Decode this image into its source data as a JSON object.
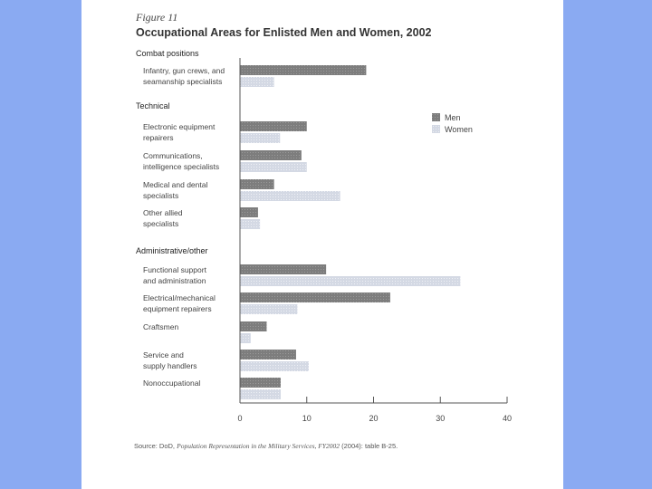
{
  "figure_label": "Figure 11",
  "source": {
    "prefix": "Source: DoD, ",
    "title": "Population Representation in the Military Services, FY2002",
    "suffix": " (2004): table B-25."
  },
  "colors": {
    "men": "#7d7d7d",
    "women": "#d4d9e4",
    "page": "#ffffff",
    "frame": "#8aaaf2"
  },
  "chart_data": {
    "type": "bar",
    "orientation": "horizontal",
    "title": "Occupational Areas for Enlisted Men and Women, 2002",
    "legend": {
      "position": "top-right",
      "entries": [
        "Men",
        "Women"
      ]
    },
    "xlim": [
      0,
      40
    ],
    "xticks": [
      0,
      10,
      20,
      30,
      40
    ],
    "grid": false,
    "groups": [
      {
        "name": "Combat positions",
        "categories": [
          {
            "label": [
              "Infantry, gun crews, and",
              "seamanship specialists"
            ],
            "men": 18.9,
            "women": 5.1
          }
        ]
      },
      {
        "name": "Technical",
        "categories": [
          {
            "label": [
              "Electronic equipment",
              "repairers"
            ],
            "men": 10.0,
            "women": 6.0
          },
          {
            "label": [
              "Communications,",
              "intelligence specialists"
            ],
            "men": 9.2,
            "women": 10.0
          },
          {
            "label": [
              "Medical and dental",
              "specialists"
            ],
            "men": 5.1,
            "women": 15.0
          },
          {
            "label": [
              "Other allied",
              "specialists"
            ],
            "men": 2.7,
            "women": 3.0
          }
        ]
      },
      {
        "name": "Administrative/other",
        "categories": [
          {
            "label": [
              "Functional support",
              "and administration"
            ],
            "men": 12.9,
            "women": 33.0
          },
          {
            "label": [
              "Electrical/mechanical",
              "equipment repairers"
            ],
            "men": 22.5,
            "women": 8.6
          },
          {
            "label": [
              "Craftsmen"
            ],
            "men": 4.0,
            "women": 1.6
          },
          {
            "label": [
              "Service and",
              "supply handlers"
            ],
            "men": 8.4,
            "women": 10.3
          },
          {
            "label": [
              "Nonoccupational"
            ],
            "men": 6.1,
            "women": 6.1
          }
        ]
      }
    ]
  }
}
